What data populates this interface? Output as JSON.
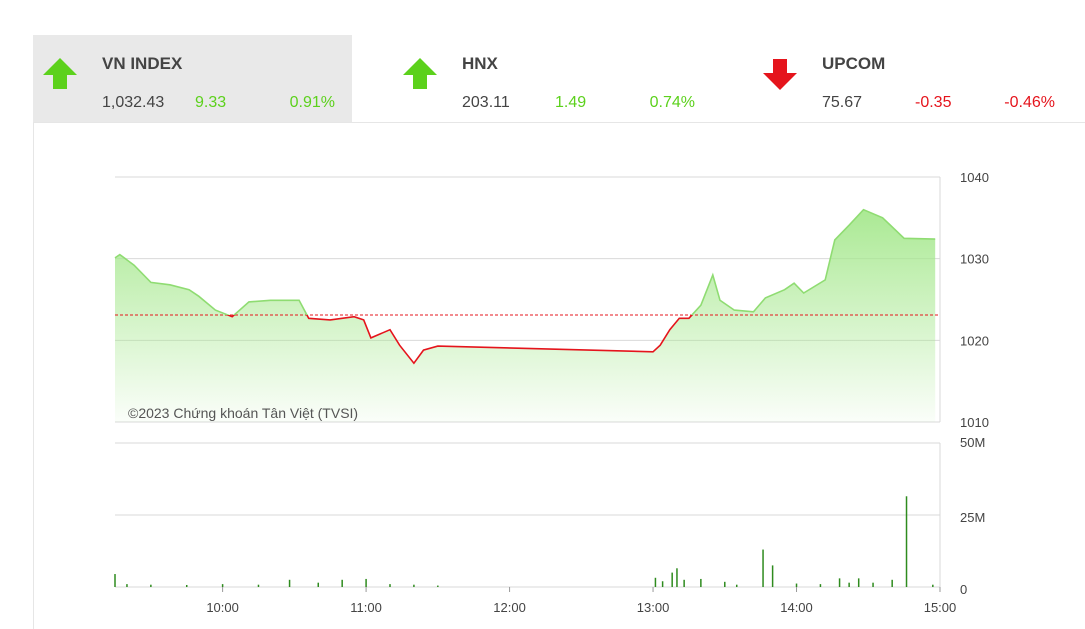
{
  "indices": [
    {
      "name": "VN INDEX",
      "value": "1,032.43",
      "change": "9.33",
      "percent": "0.91%",
      "direction": "up",
      "selected": true
    },
    {
      "name": "HNX",
      "value": "203.11",
      "change": "1.49",
      "percent": "0.74%",
      "direction": "up",
      "selected": false
    },
    {
      "name": "UPCOM",
      "value": "75.67",
      "change": "-0.35",
      "percent": "-0.46%",
      "direction": "down",
      "selected": false
    }
  ],
  "chart_data": [
    {
      "type": "area",
      "annotation": "©2023 Chứng khoán Tân Việt (TVSI)",
      "reference": 1023.1,
      "above_color": "#8fdc72",
      "below_color": "#e5141c",
      "fill_color": "#a6e88e",
      "x": [
        555,
        557,
        563,
        570,
        578,
        586,
        590,
        597,
        604,
        611,
        620,
        632,
        636,
        645,
        655,
        659,
        662,
        670,
        674,
        680,
        684,
        690,
        780,
        783,
        787,
        791,
        795,
        800,
        805,
        808,
        814,
        822,
        827,
        835,
        839,
        843,
        852,
        856,
        862,
        868,
        876,
        885,
        898
      ],
      "values": [
        1030.1,
        1030.5,
        1029.2,
        1027.1,
        1026.8,
        1026.2,
        1025.4,
        1023.7,
        1022.9,
        1024.7,
        1024.9,
        1024.9,
        1022.7,
        1022.5,
        1022.9,
        1022.5,
        1020.3,
        1021.3,
        1019.4,
        1017.2,
        1018.8,
        1019.3,
        1018.6,
        1019.4,
        1021.3,
        1022.7,
        1022.7,
        1024.3,
        1028.0,
        1024.9,
        1023.7,
        1023.5,
        1025.2,
        1026.2,
        1027.0,
        1025.8,
        1027.4,
        1032.3,
        1034.1,
        1036.0,
        1035.0,
        1032.5,
        1032.4
      ],
      "xlim": [
        555,
        900
      ],
      "ylim": [
        1010,
        1040
      ],
      "yticks": [
        1010,
        1020,
        1030,
        1040
      ],
      "grid": true
    },
    {
      "type": "bar",
      "color": "#2e8b1e",
      "x": [
        555,
        560,
        570,
        585,
        600,
        615,
        628,
        640,
        650,
        660,
        670,
        680,
        690,
        781,
        784,
        788,
        790,
        793,
        800,
        810,
        815,
        826,
        830,
        840,
        850,
        858,
        862,
        866,
        872,
        880,
        886,
        897
      ],
      "values": [
        4.5,
        1,
        0.8,
        0.7,
        1,
        0.8,
        2.5,
        1.5,
        2.5,
        2.8,
        1,
        0.8,
        0.5,
        3.2,
        2,
        5,
        6.5,
        2.5,
        2.8,
        1.8,
        0.8,
        13,
        7.5,
        1.2,
        1,
        3,
        1.5,
        3,
        1.5,
        2.5,
        31.5,
        0.8
      ],
      "xlim": [
        555,
        900
      ],
      "ylim": [
        0,
        50
      ],
      "yticks": [
        0,
        {
          "value": 25,
          "label": "25M"
        },
        {
          "value": 50,
          "label": "50M"
        }
      ],
      "xticks": [
        {
          "value": 600,
          "label": "10:00"
        },
        {
          "value": 660,
          "label": "11:00"
        },
        {
          "value": 720,
          "label": "12:00"
        },
        {
          "value": 780,
          "label": "13:00"
        },
        {
          "value": 840,
          "label": "14:00"
        },
        {
          "value": 900,
          "label": "15:00"
        }
      ],
      "grid": true
    }
  ]
}
